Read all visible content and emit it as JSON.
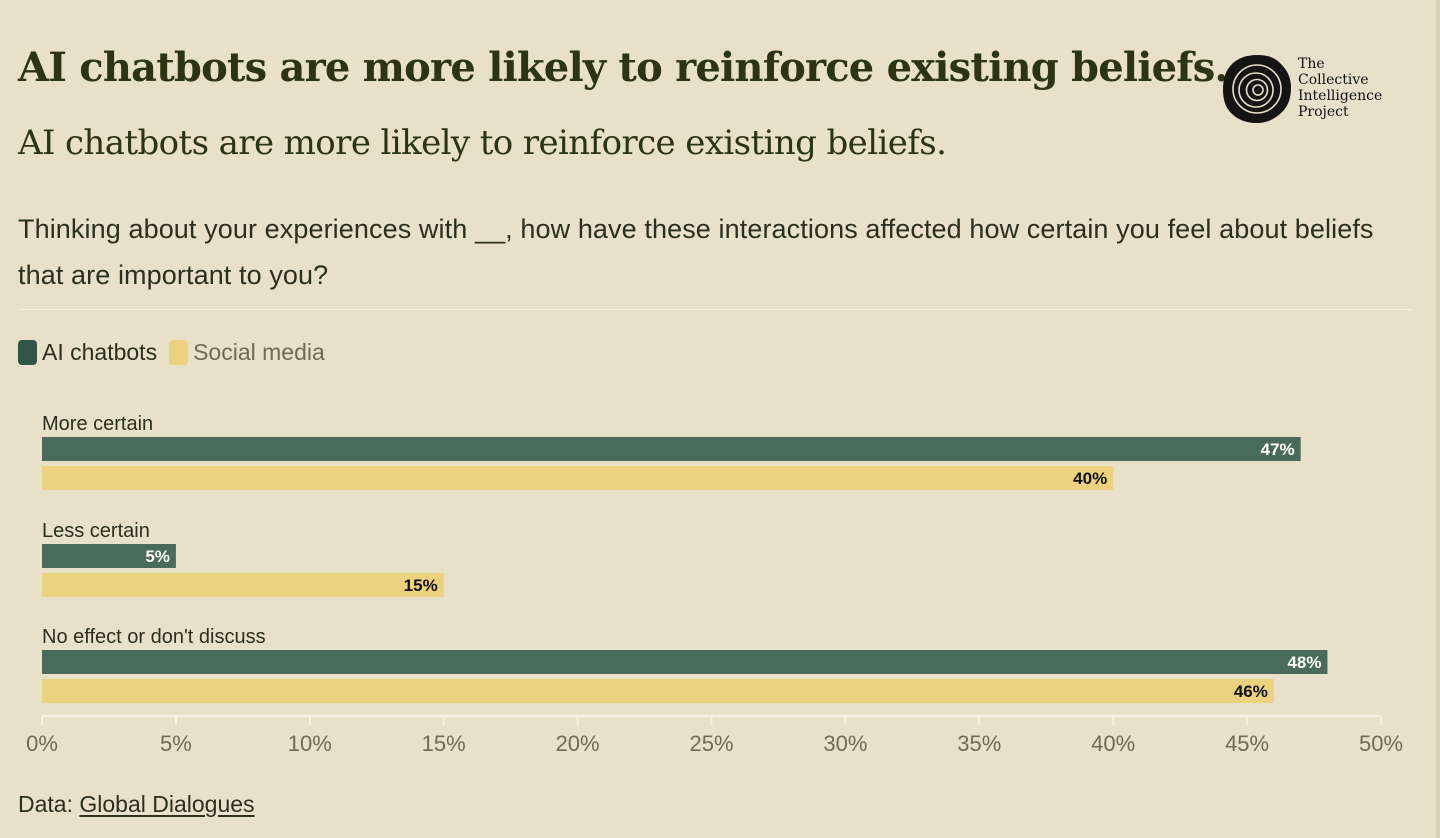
{
  "header": {
    "title": "AI chatbots are more likely to reinforce existing beliefs.",
    "subtitle": "AI chatbots are more likely to reinforce existing beliefs.",
    "question": "Thinking about your experiences with __, how have these interactions affected how certain you feel about beliefs that are important to you?"
  },
  "logo": {
    "line1": "The",
    "line2": "Collective",
    "line3": "Intelligence",
    "line4": "Project",
    "icon": "tree-rings-icon"
  },
  "legend": {
    "items": [
      {
        "label": "AI chatbots",
        "color": "#4a6b5c"
      },
      {
        "label": "Social media",
        "color": "#ecd27e"
      }
    ]
  },
  "chart_data": {
    "type": "bar",
    "orientation": "horizontal",
    "categories": [
      "More certain",
      "Less certain",
      "No effect or don't discuss"
    ],
    "series": [
      {
        "name": "AI chatbots",
        "values": [
          47,
          5,
          48
        ],
        "color": "#4a6b5c",
        "label_color": "#ffffff"
      },
      {
        "name": "Social media",
        "values": [
          40,
          15,
          46
        ],
        "color": "#ecd27e",
        "label_color": "#111111"
      }
    ],
    "value_suffix": "%",
    "xlim": [
      0,
      50
    ],
    "xticks": [
      0,
      5,
      10,
      15,
      20,
      25,
      30,
      35,
      40,
      45,
      50
    ],
    "grid": false,
    "legend": "top-left"
  },
  "footer": {
    "prefix": "Data:",
    "link_text": "Global Dialogues"
  }
}
